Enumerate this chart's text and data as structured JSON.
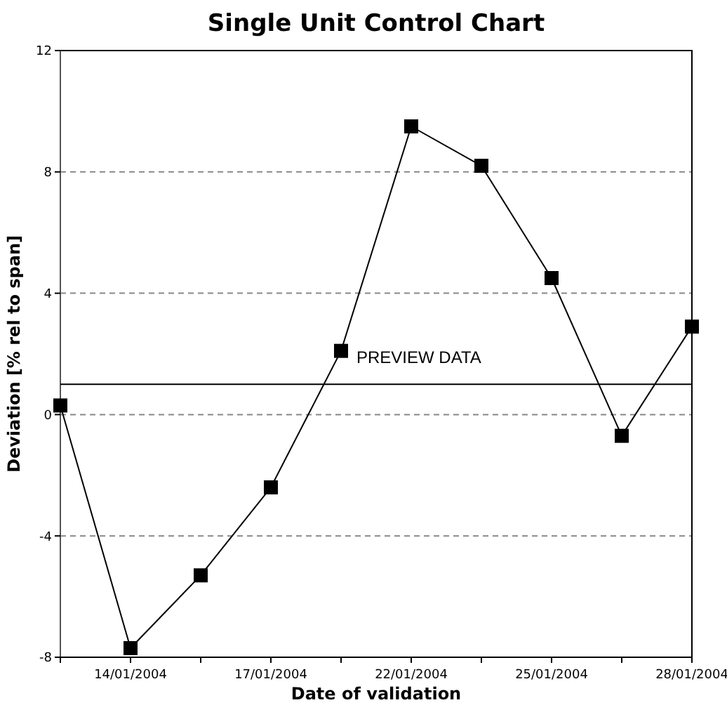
{
  "chart_data": {
    "type": "line",
    "title": "Single Unit Control Chart",
    "xlabel": "Date of validation",
    "ylabel": "Deviation [% rel to span]",
    "categories": [
      null,
      "14/01/2004",
      null,
      "17/01/2004",
      null,
      "22/01/2004",
      null,
      "25/01/2004",
      null,
      "28/01/2004"
    ],
    "series": [
      {
        "color": "#000000",
        "values": [
          0.3,
          -7.7,
          -5.3,
          -2.4,
          2.1,
          9.5,
          8.2,
          4.5,
          -0.7,
          2.9
        ]
      }
    ],
    "ylim": [
      -8,
      12
    ],
    "yticks": [
      -8,
      -4,
      0,
      4,
      8,
      12
    ],
    "grid": "y",
    "marker": "square",
    "line_style": "solid",
    "ref_lines": [
      {
        "axis": "y",
        "value": 1,
        "label": "PREVIEW DATA",
        "color": "#000000"
      }
    ]
  }
}
